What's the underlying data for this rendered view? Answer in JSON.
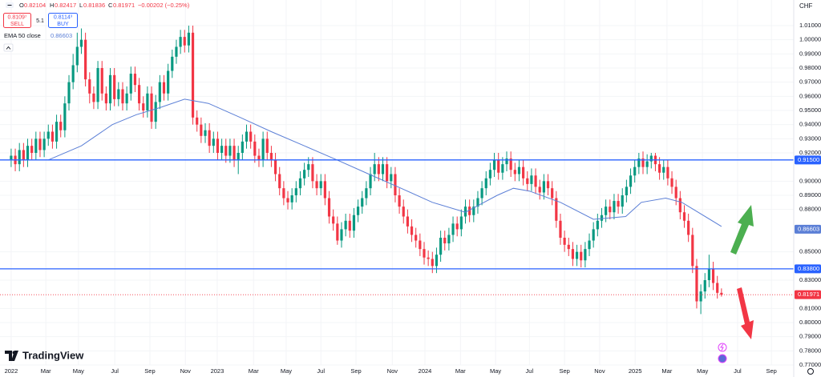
{
  "ui": {
    "open_label": "O",
    "open": "0.82104",
    "high_label": "H",
    "high": "0.82417",
    "low_label": "L",
    "low": "0.81836",
    "close_label": "C",
    "close": "0.81971",
    "change": "−0.00202 (−0.25%)",
    "sell_price": "0.8109⁷",
    "sell": "SELL",
    "spread": "5.1",
    "buy_price": "0.8114³",
    "buy": "BUY",
    "logo": "TradingView"
  },
  "chart_data": {
    "type": "candlestick",
    "currency": "CHF",
    "up_color": "#089981",
    "down_color": "#f23645",
    "xlim": [
      -2.7,
      189.5
    ],
    "ylim": [
      0.77,
      1.01
    ],
    "xticks": [
      {
        "value": 0,
        "label": "2022"
      },
      {
        "value": 8.4,
        "label": "Mar"
      },
      {
        "value": 16.3,
        "label": "May"
      },
      {
        "value": 25.1,
        "label": "Jul"
      },
      {
        "value": 33.6,
        "label": "Sep"
      },
      {
        "value": 42.2,
        "label": "Nov"
      },
      {
        "value": 49.9,
        "label": "2023"
      },
      {
        "value": 58.7,
        "label": "Mar"
      },
      {
        "value": 66.6,
        "label": "May"
      },
      {
        "value": 75,
        "label": "Jul"
      },
      {
        "value": 83.5,
        "label": "Sep"
      },
      {
        "value": 92.3,
        "label": "Nov"
      },
      {
        "value": 100.2,
        "label": "2024"
      },
      {
        "value": 108.8,
        "label": "Mar"
      },
      {
        "value": 117.3,
        "label": "May"
      },
      {
        "value": 125.5,
        "label": "Jul"
      },
      {
        "value": 134,
        "label": "Sep"
      },
      {
        "value": 142.5,
        "label": "Nov"
      },
      {
        "value": 151.1,
        "label": "2025"
      },
      {
        "value": 158.8,
        "label": "Mar"
      },
      {
        "value": 167.4,
        "label": "May"
      },
      {
        "value": 175.9,
        "label": "Jul"
      },
      {
        "value": 184.1,
        "label": "Sep"
      }
    ],
    "yticks": [
      {
        "value": 1.01,
        "label": "1.01000"
      },
      {
        "value": 1.0,
        "label": "1.00000"
      },
      {
        "value": 0.99,
        "label": "0.99000"
      },
      {
        "value": 0.98,
        "label": "0.98000"
      },
      {
        "value": 0.97,
        "label": "0.97000"
      },
      {
        "value": 0.96,
        "label": "0.96000"
      },
      {
        "value": 0.95,
        "label": "0.95000"
      },
      {
        "value": 0.94,
        "label": "0.94000"
      },
      {
        "value": 0.93,
        "label": "0.93000"
      },
      {
        "value": 0.92,
        "label": "0.92000"
      },
      {
        "value": 0.9,
        "label": "0.90000"
      },
      {
        "value": 0.89,
        "label": "0.89000"
      },
      {
        "value": 0.88,
        "label": "0.88000"
      },
      {
        "value": 0.85,
        "label": "0.85000"
      },
      {
        "value": 0.83,
        "label": "0.83000"
      },
      {
        "value": 0.81,
        "label": "0.81000"
      },
      {
        "value": 0.8,
        "label": "0.80000"
      },
      {
        "value": 0.79,
        "label": "0.79000"
      },
      {
        "value": 0.78,
        "label": "0.78000"
      },
      {
        "value": 0.77,
        "label": "0.77000"
      }
    ],
    "levels": [
      {
        "value": 0.915,
        "label": "0.91500",
        "color": "#2962ff"
      },
      {
        "value": 0.838,
        "label": "0.83800",
        "color": "#2962ff"
      }
    ],
    "last": {
      "value": 0.81971,
      "label": "0.81971",
      "color": "#f23645"
    },
    "ema": {
      "name": "EMA 50 close",
      "color": "#5b7fd6",
      "last": {
        "value": 0.86603,
        "label": "0.86603"
      },
      "x": [
        9,
        17,
        24.5,
        30.3,
        36,
        42,
        47.8,
        55.5,
        63,
        71,
        78.9,
        86.6,
        94.4,
        102,
        110,
        117.7,
        121.6,
        125.5,
        133,
        141,
        148.8,
        152.6,
        158.5,
        162.4,
        172
      ],
      "values": [
        0.915,
        0.925,
        0.94,
        0.947,
        0.952,
        0.958,
        0.955,
        0.945,
        0.935,
        0.925,
        0.915,
        0.905,
        0.895,
        0.885,
        0.878,
        0.89,
        0.895,
        0.893,
        0.885,
        0.873,
        0.875,
        0.885,
        0.888,
        0.885,
        0.868
      ]
    },
    "candles": [
      [
        0.915,
        0.923,
        0.91,
        0.918
      ],
      [
        0.918,
        0.923,
        0.907,
        0.912
      ],
      [
        0.912,
        0.927,
        0.907,
        0.922
      ],
      [
        0.922,
        0.927,
        0.91,
        0.915
      ],
      [
        0.915,
        0.93,
        0.91,
        0.925
      ],
      [
        0.925,
        0.93,
        0.915,
        0.92
      ],
      [
        0.92,
        0.935,
        0.915,
        0.93
      ],
      [
        0.93,
        0.935,
        0.917,
        0.922
      ],
      [
        0.922,
        0.935,
        0.917,
        0.93
      ],
      [
        0.93,
        0.94,
        0.925,
        0.935
      ],
      [
        0.935,
        0.94,
        0.923,
        0.928
      ],
      [
        0.928,
        0.947,
        0.923,
        0.942
      ],
      [
        0.942,
        0.947,
        0.931,
        0.936
      ],
      [
        0.936,
        0.96,
        0.931,
        0.955
      ],
      [
        0.955,
        0.975,
        0.95,
        0.97
      ],
      [
        0.97,
        0.99,
        0.965,
        0.982
      ],
      [
        0.982,
        1.005,
        0.977,
        0.995
      ],
      [
        0.995,
        1.008,
        0.99,
        1.0
      ],
      [
        1.0,
        1.005,
        0.967,
        0.972
      ],
      [
        0.972,
        0.977,
        0.955,
        0.962
      ],
      [
        0.962,
        0.967,
        0.951,
        0.956
      ],
      [
        0.956,
        0.985,
        0.951,
        0.98
      ],
      [
        0.98,
        0.985,
        0.957,
        0.962
      ],
      [
        0.962,
        0.967,
        0.95,
        0.955
      ],
      [
        0.955,
        0.98,
        0.95,
        0.975
      ],
      [
        0.975,
        0.98,
        0.953,
        0.958
      ],
      [
        0.958,
        0.97,
        0.953,
        0.965
      ],
      [
        0.965,
        0.97,
        0.95,
        0.955
      ],
      [
        0.955,
        0.967,
        0.95,
        0.962
      ],
      [
        0.962,
        0.981,
        0.957,
        0.976
      ],
      [
        0.976,
        0.981,
        0.963,
        0.968
      ],
      [
        0.968,
        0.973,
        0.95,
        0.955
      ],
      [
        0.955,
        0.96,
        0.945,
        0.95
      ],
      [
        0.95,
        0.967,
        0.945,
        0.962
      ],
      [
        0.962,
        0.967,
        0.937,
        0.942
      ],
      [
        0.942,
        0.961,
        0.937,
        0.956
      ],
      [
        0.956,
        0.975,
        0.951,
        0.97
      ],
      [
        0.97,
        0.975,
        0.957,
        0.962
      ],
      [
        0.962,
        0.983,
        0.957,
        0.978
      ],
      [
        0.978,
        0.993,
        0.973,
        0.988
      ],
      [
        0.988,
        1.0,
        0.983,
        0.995
      ],
      [
        0.995,
        1.007,
        0.99,
        1.002
      ],
      [
        1.002,
        1.007,
        0.991,
        0.996
      ],
      [
        0.996,
        1.01,
        0.991,
        1.005
      ],
      [
        1.005,
        1.01,
        0.94,
        0.945
      ],
      [
        0.945,
        0.95,
        0.935,
        0.94
      ],
      [
        0.94,
        0.945,
        0.927,
        0.932
      ],
      [
        0.932,
        0.941,
        0.927,
        0.936
      ],
      [
        0.936,
        0.941,
        0.92,
        0.925
      ],
      [
        0.925,
        0.935,
        0.92,
        0.93
      ],
      [
        0.93,
        0.935,
        0.915,
        0.92
      ],
      [
        0.92,
        0.93,
        0.915,
        0.925
      ],
      [
        0.925,
        0.93,
        0.913,
        0.918
      ],
      [
        0.918,
        0.93,
        0.913,
        0.925
      ],
      [
        0.925,
        0.93,
        0.91,
        0.915
      ],
      [
        0.915,
        0.925,
        0.905,
        0.92
      ],
      [
        0.92,
        0.933,
        0.915,
        0.928
      ],
      [
        0.928,
        0.94,
        0.923,
        0.935
      ],
      [
        0.935,
        0.94,
        0.923,
        0.928
      ],
      [
        0.928,
        0.933,
        0.913,
        0.918
      ],
      [
        0.918,
        0.923,
        0.91,
        0.915
      ],
      [
        0.915,
        0.935,
        0.91,
        0.93
      ],
      [
        0.93,
        0.935,
        0.915,
        0.92
      ],
      [
        0.92,
        0.925,
        0.91,
        0.915
      ],
      [
        0.915,
        0.92,
        0.9,
        0.905
      ],
      [
        0.905,
        0.91,
        0.89,
        0.895
      ],
      [
        0.895,
        0.9,
        0.883,
        0.888
      ],
      [
        0.888,
        0.893,
        0.88,
        0.885
      ],
      [
        0.885,
        0.895,
        0.88,
        0.89
      ],
      [
        0.89,
        0.9,
        0.885,
        0.895
      ],
      [
        0.895,
        0.907,
        0.89,
        0.902
      ],
      [
        0.902,
        0.913,
        0.897,
        0.908
      ],
      [
        0.908,
        0.917,
        0.903,
        0.912
      ],
      [
        0.912,
        0.917,
        0.895,
        0.9
      ],
      [
        0.9,
        0.905,
        0.89,
        0.895
      ],
      [
        0.895,
        0.905,
        0.89,
        0.9
      ],
      [
        0.9,
        0.905,
        0.883,
        0.888
      ],
      [
        0.888,
        0.893,
        0.87,
        0.875
      ],
      [
        0.875,
        0.88,
        0.865,
        0.87
      ],
      [
        0.87,
        0.875,
        0.855,
        0.858
      ],
      [
        0.858,
        0.871,
        0.853,
        0.866
      ],
      [
        0.866,
        0.877,
        0.861,
        0.872
      ],
      [
        0.872,
        0.877,
        0.86,
        0.865
      ],
      [
        0.865,
        0.881,
        0.86,
        0.876
      ],
      [
        0.876,
        0.887,
        0.871,
        0.882
      ],
      [
        0.882,
        0.893,
        0.877,
        0.888
      ],
      [
        0.888,
        0.9,
        0.883,
        0.895
      ],
      [
        0.895,
        0.91,
        0.89,
        0.905
      ],
      [
        0.905,
        0.92,
        0.9,
        0.912
      ],
      [
        0.912,
        0.917,
        0.9,
        0.905
      ],
      [
        0.905,
        0.917,
        0.9,
        0.912
      ],
      [
        0.912,
        0.917,
        0.895,
        0.9
      ],
      [
        0.9,
        0.91,
        0.895,
        0.905
      ],
      [
        0.905,
        0.91,
        0.885,
        0.89
      ],
      [
        0.89,
        0.895,
        0.877,
        0.882
      ],
      [
        0.882,
        0.887,
        0.87,
        0.875
      ],
      [
        0.875,
        0.88,
        0.863,
        0.868
      ],
      [
        0.868,
        0.873,
        0.857,
        0.862
      ],
      [
        0.862,
        0.867,
        0.853,
        0.858
      ],
      [
        0.858,
        0.863,
        0.847,
        0.852
      ],
      [
        0.852,
        0.857,
        0.841,
        0.846
      ],
      [
        0.846,
        0.851,
        0.84,
        0.845
      ],
      [
        0.845,
        0.85,
        0.835,
        0.84
      ],
      [
        0.84,
        0.853,
        0.835,
        0.848
      ],
      [
        0.848,
        0.865,
        0.843,
        0.86
      ],
      [
        0.86,
        0.865,
        0.851,
        0.856
      ],
      [
        0.856,
        0.867,
        0.851,
        0.862
      ],
      [
        0.862,
        0.875,
        0.857,
        0.87
      ],
      [
        0.87,
        0.875,
        0.861,
        0.866
      ],
      [
        0.866,
        0.88,
        0.861,
        0.875
      ],
      [
        0.875,
        0.887,
        0.87,
        0.882
      ],
      [
        0.882,
        0.887,
        0.871,
        0.876
      ],
      [
        0.876,
        0.887,
        0.871,
        0.882
      ],
      [
        0.882,
        0.893,
        0.877,
        0.888
      ],
      [
        0.888,
        0.9,
        0.883,
        0.895
      ],
      [
        0.895,
        0.907,
        0.89,
        0.902
      ],
      [
        0.902,
        0.913,
        0.897,
        0.908
      ],
      [
        0.908,
        0.92,
        0.903,
        0.915
      ],
      [
        0.915,
        0.92,
        0.901,
        0.906
      ],
      [
        0.906,
        0.917,
        0.901,
        0.912
      ],
      [
        0.912,
        0.921,
        0.907,
        0.916
      ],
      [
        0.916,
        0.921,
        0.903,
        0.908
      ],
      [
        0.908,
        0.913,
        0.9,
        0.905
      ],
      [
        0.905,
        0.915,
        0.9,
        0.91
      ],
      [
        0.91,
        0.915,
        0.897,
        0.902
      ],
      [
        0.902,
        0.907,
        0.893,
        0.898
      ],
      [
        0.898,
        0.909,
        0.893,
        0.904
      ],
      [
        0.904,
        0.909,
        0.891,
        0.896
      ],
      [
        0.896,
        0.901,
        0.887,
        0.892
      ],
      [
        0.892,
        0.905,
        0.887,
        0.9
      ],
      [
        0.9,
        0.905,
        0.89,
        0.895
      ],
      [
        0.895,
        0.9,
        0.883,
        0.888
      ],
      [
        0.888,
        0.893,
        0.867,
        0.872
      ],
      [
        0.872,
        0.877,
        0.855,
        0.86
      ],
      [
        0.86,
        0.865,
        0.85,
        0.855
      ],
      [
        0.855,
        0.86,
        0.847,
        0.852
      ],
      [
        0.852,
        0.857,
        0.84,
        0.845
      ],
      [
        0.845,
        0.855,
        0.84,
        0.85
      ],
      [
        0.85,
        0.855,
        0.839,
        0.844
      ],
      [
        0.844,
        0.857,
        0.839,
        0.852
      ],
      [
        0.852,
        0.863,
        0.847,
        0.858
      ],
      [
        0.858,
        0.871,
        0.853,
        0.866
      ],
      [
        0.866,
        0.877,
        0.861,
        0.872
      ],
      [
        0.872,
        0.881,
        0.867,
        0.876
      ],
      [
        0.876,
        0.887,
        0.871,
        0.882
      ],
      [
        0.882,
        0.887,
        0.873,
        0.878
      ],
      [
        0.878,
        0.891,
        0.873,
        0.886
      ],
      [
        0.886,
        0.891,
        0.877,
        0.882
      ],
      [
        0.882,
        0.895,
        0.877,
        0.89
      ],
      [
        0.89,
        0.901,
        0.885,
        0.896
      ],
      [
        0.896,
        0.909,
        0.891,
        0.904
      ],
      [
        0.904,
        0.915,
        0.899,
        0.91
      ],
      [
        0.91,
        0.92,
        0.905,
        0.916
      ],
      [
        0.916,
        0.921,
        0.905,
        0.91
      ],
      [
        0.91,
        0.919,
        0.905,
        0.914
      ],
      [
        0.914,
        0.92,
        0.909,
        0.918
      ],
      [
        0.918,
        0.92,
        0.907,
        0.912
      ],
      [
        0.912,
        0.917,
        0.901,
        0.906
      ],
      [
        0.906,
        0.915,
        0.901,
        0.91
      ],
      [
        0.91,
        0.915,
        0.897,
        0.902
      ],
      [
        0.902,
        0.907,
        0.891,
        0.896
      ],
      [
        0.896,
        0.901,
        0.883,
        0.888
      ],
      [
        0.888,
        0.893,
        0.873,
        0.878
      ],
      [
        0.878,
        0.883,
        0.867,
        0.872
      ],
      [
        0.872,
        0.877,
        0.857,
        0.862
      ],
      [
        0.862,
        0.867,
        0.835,
        0.84
      ],
      [
        0.84,
        0.845,
        0.81,
        0.815
      ],
      [
        0.815,
        0.827,
        0.806,
        0.822
      ],
      [
        0.822,
        0.835,
        0.817,
        0.83
      ],
      [
        0.83,
        0.848,
        0.825,
        0.838
      ],
      [
        0.838,
        0.843,
        0.823,
        0.828
      ],
      [
        0.828,
        0.833,
        0.817,
        0.82104
      ],
      [
        0.82104,
        0.82417,
        0.81836,
        0.81971
      ]
    ]
  }
}
